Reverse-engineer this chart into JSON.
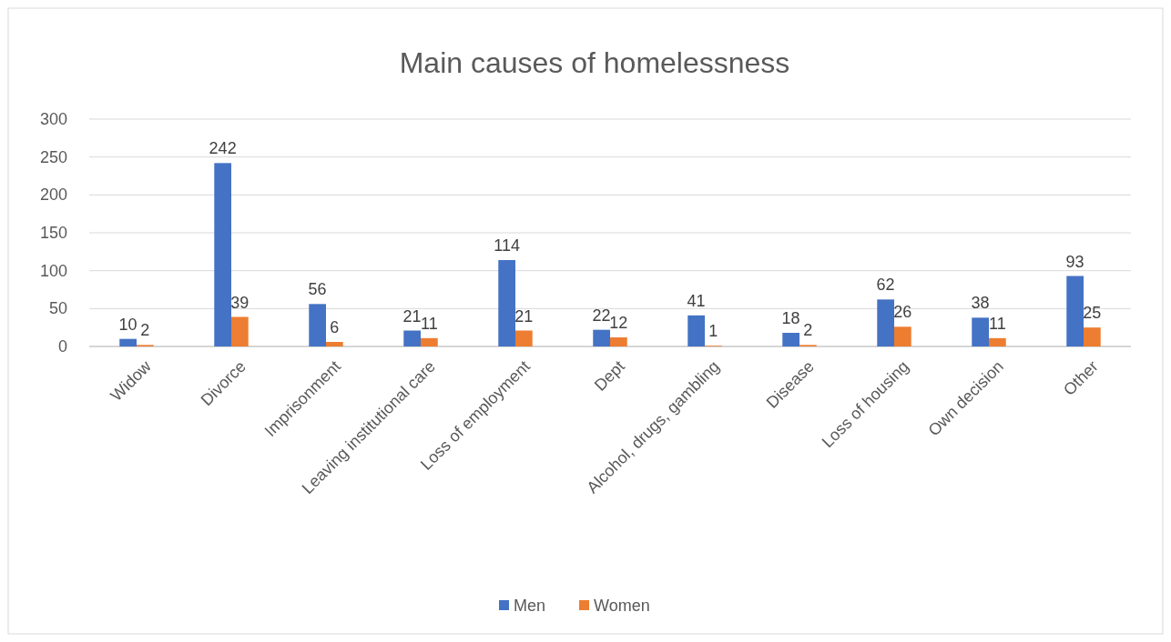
{
  "chart_data": {
    "type": "bar",
    "title": "Main causes of homelessness",
    "categories": [
      "Widow",
      "Divorce",
      "Imprisonment",
      "Leaving institutional care",
      "Loss of employment",
      "Dept",
      "Alcohol, drugs, gambling",
      "Disease",
      "Loss of housing",
      "Own decision",
      "Other"
    ],
    "series": [
      {
        "name": "Men",
        "color": "#4472c4",
        "values": [
          10,
          242,
          56,
          21,
          114,
          22,
          41,
          18,
          62,
          38,
          93
        ]
      },
      {
        "name": "Women",
        "color": "#ed7d31",
        "values": [
          2,
          39,
          6,
          11,
          21,
          12,
          1,
          2,
          26,
          11,
          25
        ]
      }
    ],
    "ylim": [
      0,
      300
    ],
    "yticks": [
      0,
      50,
      100,
      150,
      200,
      250,
      300
    ],
    "grid": "y",
    "legend": "bottom",
    "data_labels": true
  }
}
